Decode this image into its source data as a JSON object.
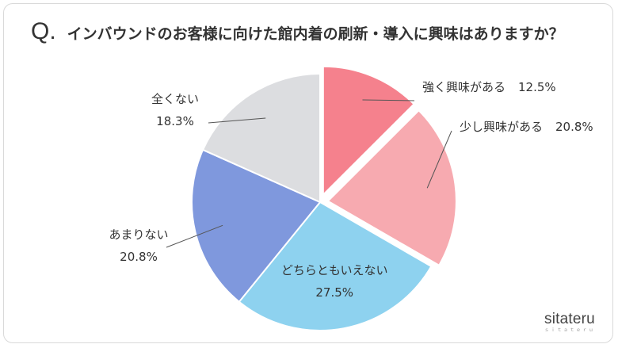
{
  "header": {
    "q_mark": "Q.",
    "title": "インバウンドのお客様に向けた館内着の刷新・導入に興味はありますか？"
  },
  "logo": {
    "main": "sitateru",
    "sub": "ｓｉｔａｔｅｒｕ"
  },
  "colors": {
    "strong_interest": "#f5818d",
    "some_interest": "#f7aab0",
    "neutral": "#8ed2ef",
    "not_much": "#7f98dd",
    "none": "#dcdde0"
  },
  "chart_data": {
    "type": "pie",
    "title": "インバウンドのお客様に向けた館内着の刷新・導入に興味はありますか？",
    "start": "12 o'clock",
    "direction": "clockwise",
    "exploded": [
      "強く興味がある",
      "少し興味がある"
    ],
    "slices": [
      {
        "label": "強く興味がある",
        "value": 12.5,
        "value_label": "12.5%",
        "color": "#f5818d"
      },
      {
        "label": "少し興味がある",
        "value": 20.8,
        "value_label": "20.8%",
        "color": "#f7aab0"
      },
      {
        "label": "どちらともいえない",
        "value": 27.5,
        "value_label": "27.5%",
        "color": "#8ed2ef"
      },
      {
        "label": "あまりない",
        "value": 20.8,
        "value_label": "20.8%",
        "color": "#7f98dd"
      },
      {
        "label": "全くない",
        "value": 18.3,
        "value_label": "18.3%",
        "color": "#dcdde0"
      }
    ]
  }
}
